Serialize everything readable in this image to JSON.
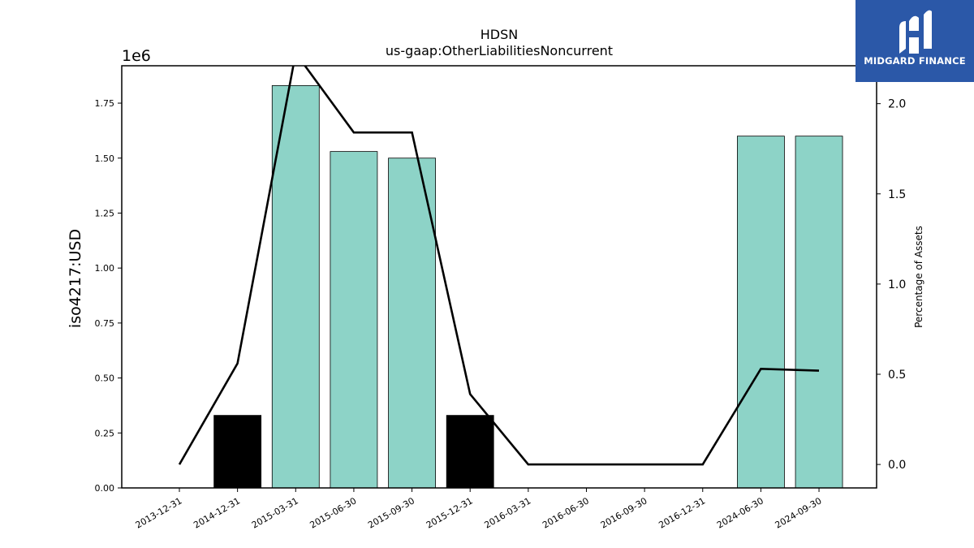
{
  "brand": {
    "name": "MIDGARD FINANCE",
    "bg_color": "#2b58a8",
    "icon": "midgard-logo-icon"
  },
  "chart_data": {
    "type": "bar",
    "title": "HDSN",
    "subtitle": "us-gaap:OtherLiabilitiesNoncurrent",
    "ylabel": "iso4217:USD",
    "y2label": "Percentage of Assets",
    "y_offset_label": "1e6",
    "categories": [
      "2013-12-31",
      "2014-12-31",
      "2015-03-31",
      "2015-06-30",
      "2015-09-30",
      "2015-12-31",
      "2016-03-31",
      "2016-06-30",
      "2016-09-30",
      "2016-12-31",
      "2024-06-30",
      "2024-09-30"
    ],
    "bars": [
      {
        "value": 0,
        "color": "#8dd3c7"
      },
      {
        "value": 0.33,
        "color": "#000000"
      },
      {
        "value": 1.83,
        "color": "#8dd3c7"
      },
      {
        "value": 1.53,
        "color": "#8dd3c7"
      },
      {
        "value": 1.5,
        "color": "#8dd3c7"
      },
      {
        "value": 0.33,
        "color": "#000000"
      },
      {
        "value": 0,
        "color": "#8dd3c7"
      },
      {
        "value": 0,
        "color": "#8dd3c7"
      },
      {
        "value": 0,
        "color": "#8dd3c7"
      },
      {
        "value": 0,
        "color": "#8dd3c7"
      },
      {
        "value": 1.6,
        "color": "#8dd3c7"
      },
      {
        "value": 1.6,
        "color": "#8dd3c7"
      }
    ],
    "line_values": [
      0.0,
      0.56,
      2.28,
      1.84,
      1.84,
      0.39,
      0.0,
      0.0,
      0.0,
      0.0,
      0.53,
      0.52
    ],
    "line_color": "#000000",
    "ylim": [
      0,
      1.92
    ],
    "y2lim": [
      -0.13,
      2.21
    ],
    "yticks": [
      "0.00",
      "0.25",
      "0.50",
      "0.75",
      "1.00",
      "1.25",
      "1.50",
      "1.75"
    ],
    "y2ticks": [
      "0.0",
      "0.5",
      "1.0",
      "1.5",
      "2.0"
    ],
    "grid": false,
    "legend": "none"
  }
}
